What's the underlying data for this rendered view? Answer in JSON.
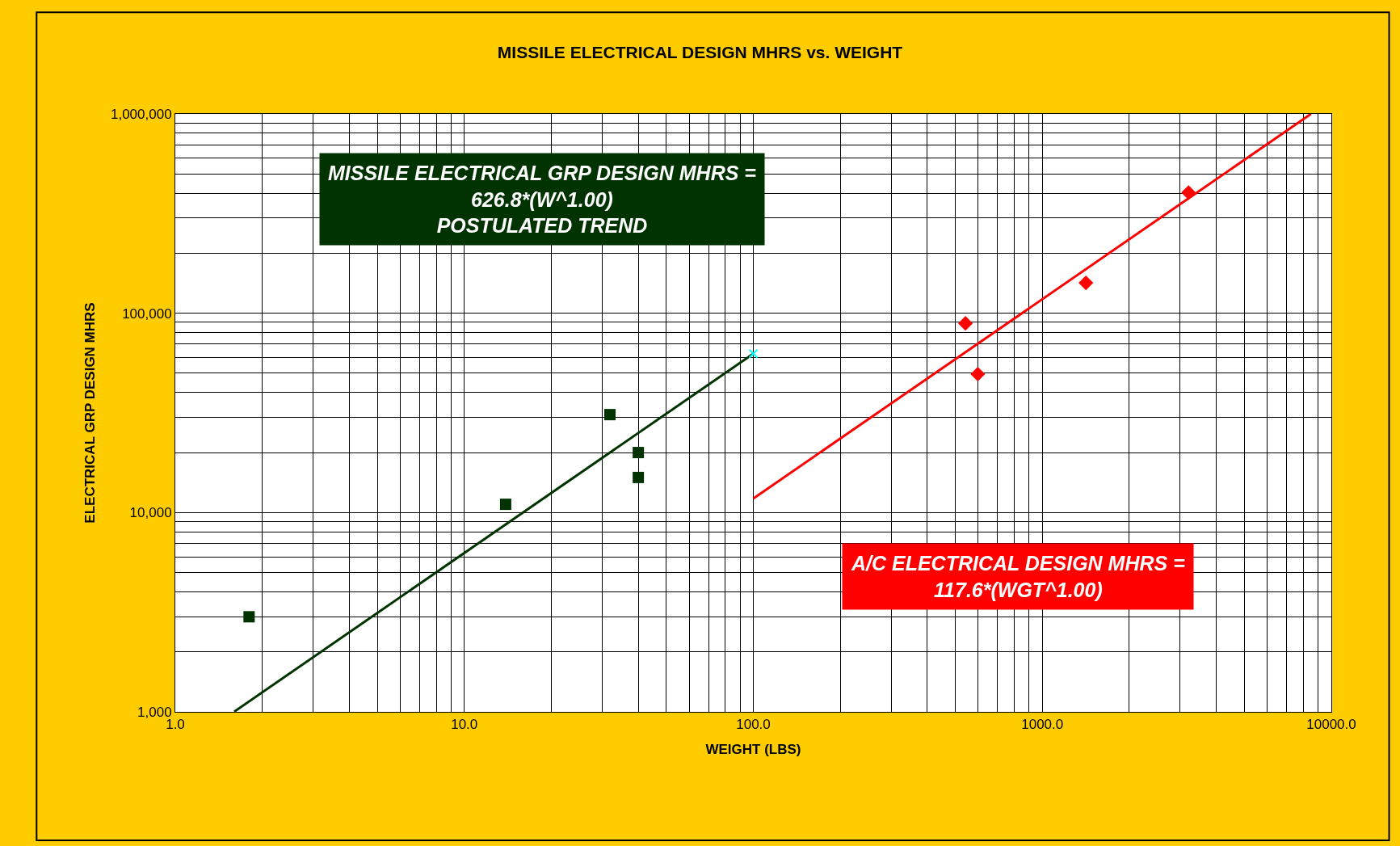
{
  "chart_data": {
    "type": "scatter",
    "title": "MISSILE ELECTRICAL DESIGN MHRS vs. WEIGHT",
    "xlabel": "WEIGHT (LBS)",
    "ylabel": "ELECTRICAL GRP DESIGN MHRS",
    "log": "xy",
    "grid": true,
    "xlim": [
      1,
      10000
    ],
    "xticks": [
      {
        "value": 1,
        "label": "1.0"
      },
      {
        "value": 10,
        "label": "10.0"
      },
      {
        "value": 100,
        "label": "100.0"
      },
      {
        "value": 1000,
        "label": "1000.0"
      },
      {
        "value": 10000,
        "label": "10000.0"
      }
    ],
    "ylim": [
      1000,
      1000000
    ],
    "yticks": [
      {
        "value": 1000,
        "label": "1,000"
      },
      {
        "value": 10000,
        "label": "10,000"
      },
      {
        "value": 100000,
        "label": "100,000"
      },
      {
        "value": 1000000,
        "label": "1,000,000"
      }
    ],
    "series": [
      {
        "marker": "square",
        "color": "#003300",
        "x": [
          1.8,
          13.9,
          31.9,
          40,
          40
        ],
        "values": [
          3000,
          11000,
          31000,
          20000,
          15000
        ]
      },
      {
        "type": "line",
        "marker": "none",
        "color": "#003300",
        "x": [
          1.6,
          100
        ],
        "values": [
          1003,
          62680
        ]
      },
      {
        "marker": "cross",
        "color": "#00ffff",
        "x": [
          100
        ],
        "values": [
          62680
        ]
      },
      {
        "marker": "diamond",
        "color": "#ff0000",
        "x": [
          542,
          598,
          1415,
          3206
        ],
        "values": [
          89000,
          49500,
          142000,
          403000
        ]
      },
      {
        "type": "line",
        "marker": "none",
        "color": "#ff0000",
        "x": [
          100,
          8500
        ],
        "values": [
          11760,
          999600
        ]
      }
    ],
    "annotations": [
      "MISSILE ELECTRICAL GRP DESIGN MHRS =\n626.8*(W^1.00)\nPOSTULATED TREND",
      "A/C ELECTRICAL DESIGN MHRS =\n117.6*(WGT^1.00)"
    ]
  }
}
